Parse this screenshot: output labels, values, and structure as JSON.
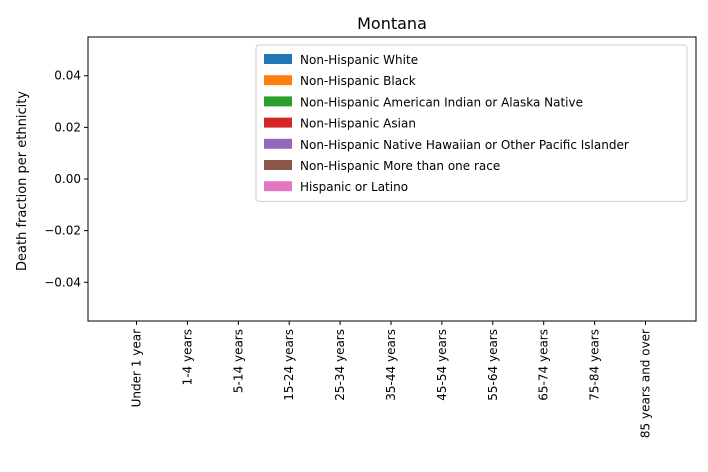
{
  "chart_data": {
    "type": "bar",
    "title": "Montana",
    "xlabel": "",
    "ylabel": "Death fraction per ethnicity",
    "categories": [
      "Under 1 year",
      "1-4 years",
      "5-14 years",
      "15-24 years",
      "25-34 years",
      "35-44 years",
      "45-54 years",
      "55-64 years",
      "65-74 years",
      "75-84 years",
      "85 years and over"
    ],
    "ylim": [
      -0.055,
      0.055
    ],
    "yticks": [
      -0.04,
      -0.02,
      0.0,
      0.02,
      0.04
    ],
    "ytick_labels": [
      "−0.04",
      "−0.02",
      "0.00",
      "0.02",
      "0.04"
    ],
    "grid": false,
    "legend_position": "top-right",
    "series": [
      {
        "name": "Non-Hispanic White",
        "color": "#1f77b4",
        "values": [
          0,
          0,
          0,
          0,
          0,
          0,
          0,
          0,
          0,
          0,
          0
        ]
      },
      {
        "name": "Non-Hispanic Black",
        "color": "#ff7f0e",
        "values": [
          0,
          0,
          0,
          0,
          0,
          0,
          0,
          0,
          0,
          0,
          0
        ]
      },
      {
        "name": "Non-Hispanic American Indian or Alaska Native",
        "color": "#2ca02c",
        "values": [
          0,
          0,
          0,
          0,
          0,
          0,
          0,
          0,
          0,
          0,
          0
        ]
      },
      {
        "name": "Non-Hispanic Asian",
        "color": "#d62728",
        "values": [
          0,
          0,
          0,
          0,
          0,
          0,
          0,
          0,
          0,
          0,
          0
        ]
      },
      {
        "name": "Non-Hispanic Native Hawaiian or Other Pacific Islander",
        "color": "#9467bd",
        "values": [
          0,
          0,
          0,
          0,
          0,
          0,
          0,
          0,
          0,
          0,
          0
        ]
      },
      {
        "name": "Non-Hispanic More than one race",
        "color": "#8c564b",
        "values": [
          0,
          0,
          0,
          0,
          0,
          0,
          0,
          0,
          0,
          0,
          0
        ]
      },
      {
        "name": "Hispanic or Latino",
        "color": "#e377c2",
        "values": [
          0,
          0,
          0,
          0,
          0,
          0,
          0,
          0,
          0,
          0,
          0
        ]
      }
    ]
  }
}
